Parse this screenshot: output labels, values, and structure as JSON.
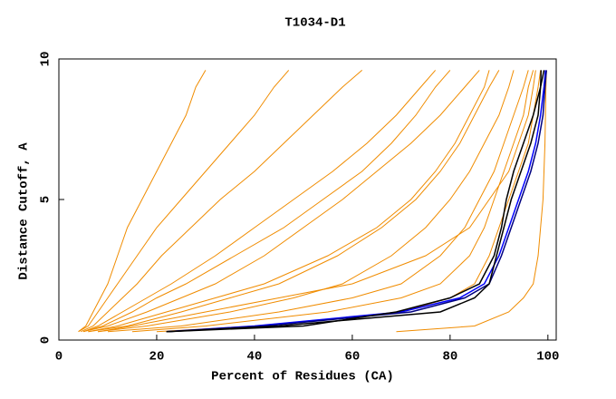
{
  "chart_data": {
    "type": "line",
    "title": "T1034-D1",
    "x_label": "Percent of Residues (CA)",
    "y_label": "Distance Cutoff, A",
    "xlim": [
      0,
      101.7
    ],
    "ylim": [
      0,
      10
    ],
    "xticks": [
      0,
      20,
      40,
      60,
      80,
      100
    ],
    "yticks": [
      0,
      5,
      10
    ],
    "series": [
      {
        "color": "#f08c00",
        "x": [
          20,
          40,
          70,
          80,
          85,
          88,
          90,
          92,
          94,
          96,
          97,
          98,
          98.5
        ],
        "values": [
          0.3,
          0.5,
          1,
          1.5,
          2,
          3,
          4,
          5,
          6,
          7,
          8,
          9,
          9.6
        ]
      },
      {
        "color": "#f08c00",
        "x": [
          15,
          30,
          55,
          70,
          78,
          84,
          87,
          89,
          91,
          93,
          95,
          96,
          97
        ],
        "values": [
          0.3,
          0.5,
          1,
          1.5,
          2,
          3,
          4,
          5,
          6,
          7,
          8,
          9,
          9.6
        ]
      },
      {
        "color": "#f08c00",
        "x": [
          10,
          25,
          45,
          60,
          70,
          78,
          83,
          86,
          89,
          91,
          93,
          95,
          96
        ],
        "values": [
          0.3,
          0.5,
          1,
          1.5,
          2,
          3,
          4,
          5,
          6,
          7,
          8,
          9,
          9.6
        ]
      },
      {
        "color": "#f08c00",
        "x": [
          8,
          18,
          35,
          48,
          58,
          68,
          75,
          80,
          84,
          87,
          90,
          92,
          93
        ],
        "values": [
          0.3,
          0.5,
          1,
          1.5,
          2,
          3,
          4,
          5,
          6,
          7,
          8,
          9,
          9.6
        ]
      },
      {
        "color": "#f08c00",
        "x": [
          6,
          14,
          25,
          35,
          45,
          57,
          66,
          73,
          78,
          82,
          85,
          88,
          90
        ],
        "values": [
          0.3,
          0.5,
          1,
          1.5,
          2,
          3,
          4,
          5,
          6,
          7,
          8,
          9,
          9.6
        ]
      },
      {
        "color": "#f08c00",
        "x": [
          5,
          10,
          18,
          25,
          32,
          42,
          50,
          58,
          65,
          72,
          78,
          83,
          86
        ],
        "values": [
          0.3,
          0.5,
          1,
          1.5,
          2,
          3,
          4,
          5,
          6,
          7,
          8,
          9,
          9.6
        ]
      },
      {
        "color": "#f08c00",
        "x": [
          5,
          8,
          13,
          18,
          23,
          32,
          40,
          48,
          56,
          63,
          69,
          74,
          77
        ],
        "values": [
          0.3,
          0.5,
          1,
          1.5,
          2,
          3,
          4,
          5,
          6,
          7,
          8,
          9,
          9.6
        ]
      },
      {
        "color": "#f08c00",
        "x": [
          4.5,
          7,
          10,
          13,
          16,
          21,
          27,
          33,
          40,
          46,
          52,
          58,
          62
        ],
        "values": [
          0.3,
          0.5,
          1,
          1.5,
          2,
          3,
          4,
          5,
          6,
          7,
          8,
          9,
          9.6
        ]
      },
      {
        "color": "#f08c00",
        "x": [
          4,
          6,
          8,
          10,
          12,
          16,
          20,
          25,
          30,
          35,
          40,
          44,
          47
        ],
        "values": [
          0.3,
          0.5,
          1,
          1.5,
          2,
          3,
          4,
          5,
          6,
          7,
          8,
          9,
          9.6
        ]
      },
      {
        "color": "#f08c00",
        "x": [
          4,
          5.5,
          7,
          8.5,
          10,
          12,
          14,
          17,
          20,
          23,
          26,
          28,
          30
        ],
        "values": [
          0.3,
          0.5,
          1,
          1.5,
          2,
          3,
          4,
          5,
          6,
          7,
          8,
          9,
          9.6
        ]
      },
      {
        "color": "#f08c00",
        "x": [
          69,
          85,
          92,
          95,
          97,
          98,
          98.5,
          99,
          99.2,
          99.4,
          99.5,
          99.6,
          99.7
        ],
        "values": [
          0.3,
          0.5,
          1,
          1.5,
          2,
          3,
          4,
          5,
          6,
          7,
          8,
          9,
          9.6
        ]
      },
      {
        "color": "#f08c00",
        "x": [
          8,
          15,
          30,
          45,
          60,
          75,
          84,
          88,
          92,
          94,
          96,
          97,
          97.5
        ],
        "values": [
          0.3,
          0.5,
          1,
          1.5,
          2,
          3,
          4,
          5,
          6,
          7,
          8,
          9,
          9.6
        ]
      },
      {
        "color": "#f08c00",
        "x": [
          6,
          12,
          22,
          32,
          42,
          55,
          65,
          72,
          77,
          81,
          84,
          87,
          88
        ],
        "values": [
          0.3,
          0.5,
          1,
          1.5,
          2,
          3,
          4,
          5,
          6,
          7,
          8,
          9,
          9.6
        ]
      },
      {
        "color": "#f08c00",
        "x": [
          5,
          9,
          15,
          20,
          26,
          36,
          46,
          54,
          62,
          68,
          73,
          77,
          80
        ],
        "values": [
          0.3,
          0.5,
          1,
          1.5,
          2,
          3,
          4,
          5,
          6,
          7,
          8,
          9,
          9.6
        ]
      },
      {
        "color": "#0000ff",
        "x": [
          22,
          40,
          70,
          82,
          87,
          90,
          92,
          94,
          96,
          97.5,
          98.5,
          99.2,
          99.5
        ],
        "values": [
          0.3,
          0.5,
          1,
          1.5,
          2,
          3,
          4,
          5,
          6,
          7,
          8,
          9,
          9.6
        ]
      },
      {
        "color": "#000080",
        "x": [
          22,
          42,
          72,
          83,
          88,
          90.5,
          92.5,
          94.5,
          96.5,
          98,
          99,
          99.4,
          99.7
        ],
        "values": [
          0.3,
          0.5,
          1,
          1.5,
          2,
          3,
          4,
          5,
          6,
          7,
          8,
          9,
          9.6
        ]
      },
      {
        "color": "#000000",
        "x": [
          22,
          45,
          78,
          85,
          88,
          89.5,
          91,
          92.5,
          94.5,
          96.5,
          98,
          98.5,
          98.6
        ],
        "values": [
          0.3,
          0.5,
          1,
          1.5,
          2,
          3,
          4,
          5,
          6,
          7,
          8,
          9,
          9.6
        ]
      },
      {
        "color": "#000000",
        "x": [
          22,
          50,
          69,
          80,
          86,
          89,
          90.5,
          91.5,
          93,
          95,
          97,
          98.5,
          99.2
        ],
        "values": [
          0.3,
          0.5,
          1,
          1.5,
          2,
          3,
          4,
          5,
          6,
          7,
          8,
          9,
          9.6
        ]
      }
    ]
  }
}
